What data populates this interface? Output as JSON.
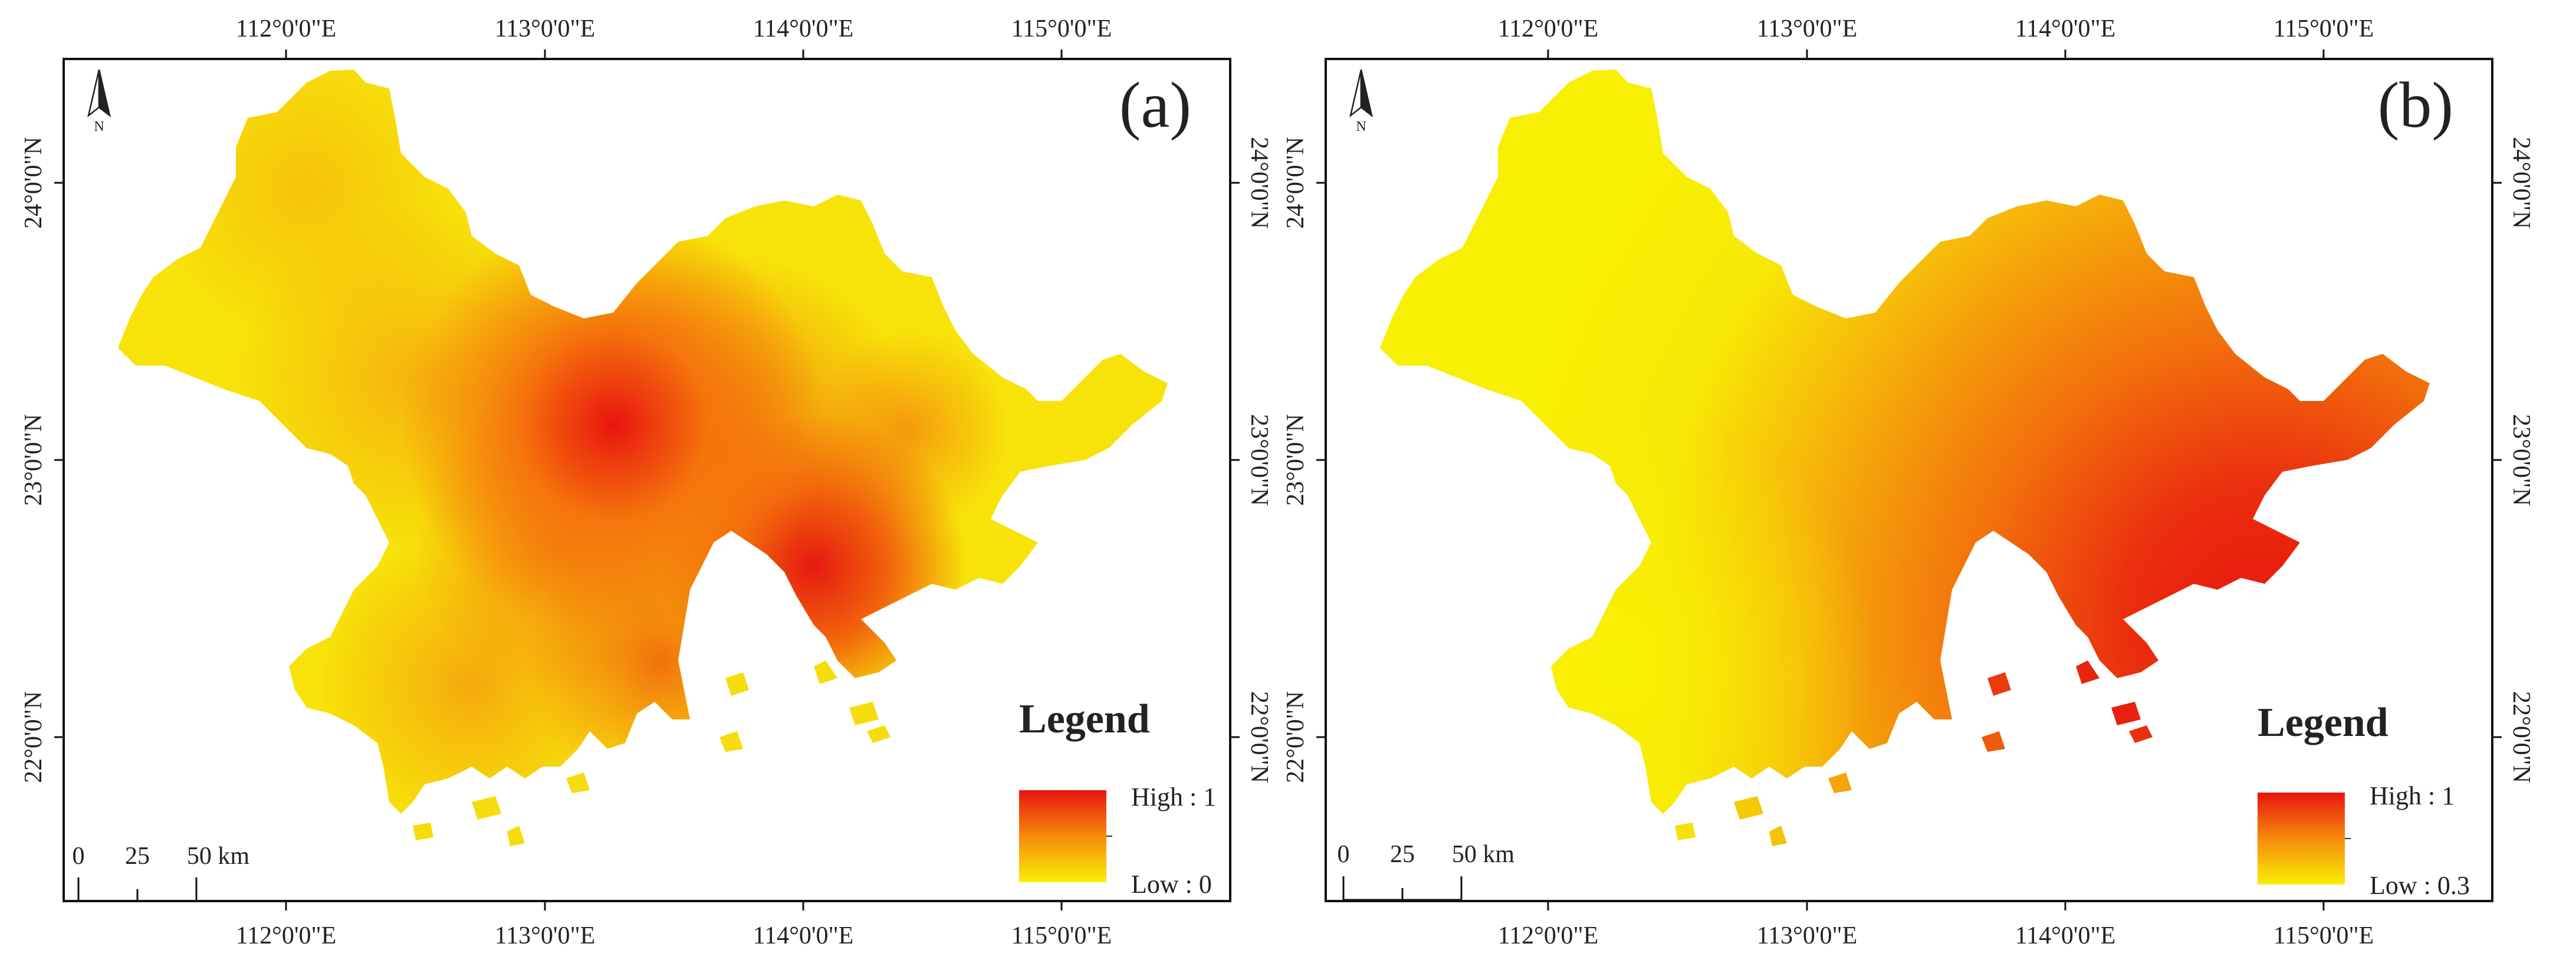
{
  "panels": [
    {
      "label": "(a)",
      "top_ticks": [
        "112°0'0\"E",
        "113°0'0\"E",
        "114°0'0\"E",
        "115°0'0\"E"
      ],
      "bottom_ticks": [
        "112°0'0\"E",
        "113°0'0\"E",
        "114°0'0\"E",
        "115°0'0\"E"
      ],
      "left_ticks": [
        "24°0'0\"N",
        "23°0'0\"N",
        "22°0'0\"N"
      ],
      "right_ticks": [
        "24°0'0\"N",
        "23°0'0\"N",
        "22°0'0\"N"
      ],
      "north_letter": "N",
      "legend": {
        "title": "Legend",
        "high_label": "High : 1",
        "low_label": "Low : 0",
        "high_value": 1,
        "low_value": 0
      },
      "scale_bar": {
        "labels": [
          "0",
          "25",
          "50 km"
        ]
      }
    },
    {
      "label": "(b)",
      "top_ticks": [
        "112°0'0\"E",
        "113°0'0\"E",
        "114°0'0\"E",
        "115°0'0\"E"
      ],
      "bottom_ticks": [
        "112°0'0\"E",
        "113°0'0\"E",
        "114°0'0\"E",
        "115°0'0\"E"
      ],
      "left_ticks": [
        "24°0'0\"N",
        "23°0'0\"N",
        "22°0'0\"N"
      ],
      "right_ticks": [
        "24°0'0\"N",
        "23°0'0\"N",
        "22°0'0\"N"
      ],
      "north_letter": "N",
      "legend": {
        "title": "Legend",
        "high_label": "High : 1",
        "low_label": "Low : 0.3",
        "high_value": 1,
        "low_value": 0.3
      },
      "scale_bar": {
        "labels": [
          "0",
          "25",
          "50 km"
        ]
      }
    }
  ],
  "colors": {
    "high": "#e8150f",
    "mid": "#f68a0c",
    "low": "#f8ef04",
    "frame": "#111111"
  }
}
